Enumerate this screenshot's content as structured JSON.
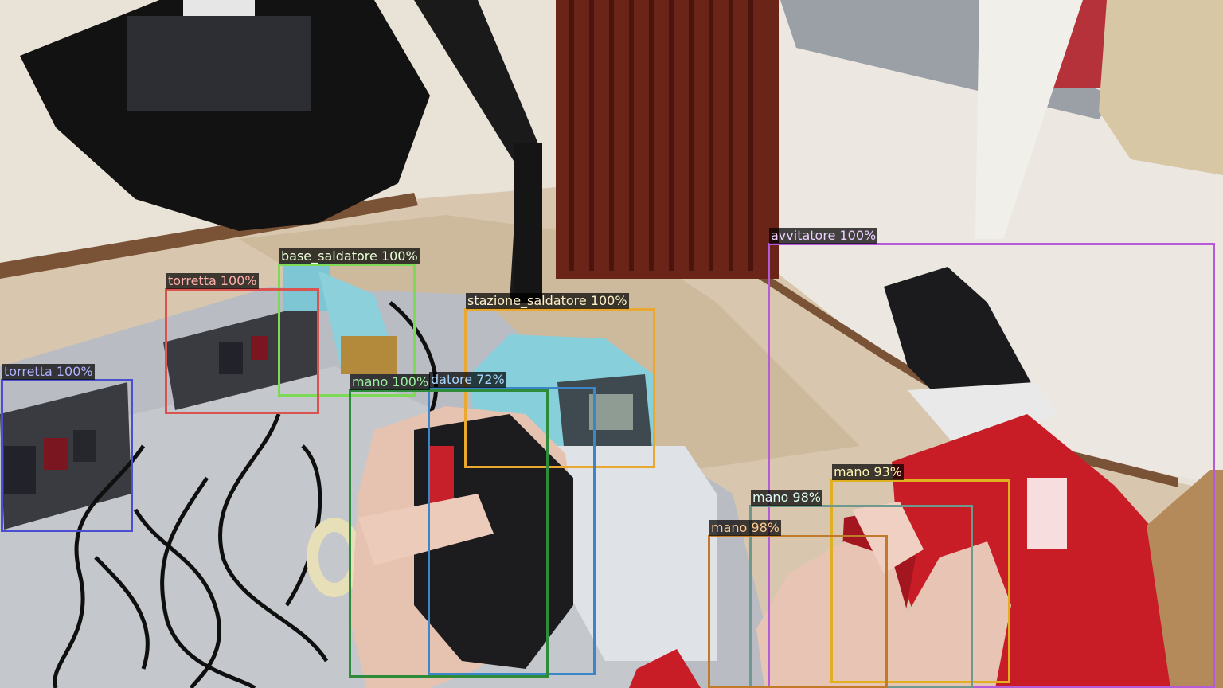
{
  "detections": [
    {
      "id": "base_saldatore",
      "label": "base_saldatore 100%",
      "color": "#7ed957",
      "text_color": "#e8ffd8"
    },
    {
      "id": "torretta_1",
      "label": "torretta 100%",
      "color": "#d9534f",
      "text_color": "#ffb0a8"
    },
    {
      "id": "torretta_2",
      "label": "torretta 100%",
      "color": "#4a4fd0",
      "text_color": "#b0b4ff"
    },
    {
      "id": "stazione_saldatore",
      "label": "stazione_saldatore 100%",
      "color": "#e9a930",
      "text_color": "#fff0c8"
    },
    {
      "id": "saldatore",
      "label": "datore 72%",
      "color": "#3a86c8",
      "text_color": "#a8d8ff"
    },
    {
      "id": "mano_1",
      "label": "mano 100%",
      "color": "#2e8b3a",
      "text_color": "#9bf0a0"
    },
    {
      "id": "avvitatore",
      "label": "avvitatore 100%",
      "color": "#b55ad8",
      "text_color": "#ecd0ff"
    },
    {
      "id": "mano_2",
      "label": "mano 93%",
      "color": "#e0b020",
      "text_color": "#fff3b0"
    },
    {
      "id": "mano_3",
      "label": "mano 98%",
      "color": "#6d9a8c",
      "text_color": "#e0fff4"
    },
    {
      "id": "mano_4",
      "label": "mano 98%",
      "color": "#c07a2a",
      "text_color": "#ffc890"
    }
  ]
}
